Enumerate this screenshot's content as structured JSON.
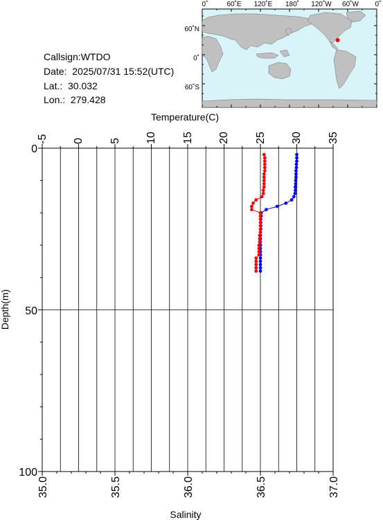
{
  "station": {
    "callsign": "Callsign:WTDO",
    "date": "Date:  2025/07/31 15:52(UTC)",
    "lat": "Lat.:  30.032",
    "lon": "Lon.:  279.428"
  },
  "map": {
    "top_lon_labels": [
      "0˚",
      "60˚E",
      "120˚E",
      "180˚",
      "120˚W",
      "60˚W",
      "0˚"
    ],
    "left_lat_labels": [
      "60˚N",
      "0˚",
      "60˚S"
    ],
    "ocean_color": "#d8f4f8",
    "land_color": "#c0c0c0",
    "marker_color": "#ff0000",
    "marker": {
      "lon": 279.428,
      "lat": 30.032
    }
  },
  "chart_data": {
    "type": "line",
    "top_axis": {
      "label": "Temperature(C)",
      "range": [
        -5,
        35
      ],
      "ticks": [
        "-5",
        "0",
        "5",
        "10",
        "15",
        "20",
        "25",
        "30",
        "35"
      ]
    },
    "bottom_axis": {
      "label": "Salinity",
      "range": [
        35.0,
        37.0
      ],
      "ticks": [
        "35.0",
        "35.5",
        "36.0",
        "36.5",
        "37.0"
      ]
    },
    "left_axis": {
      "label": "Depth(m)",
      "range": [
        0,
        100
      ],
      "inverted": true,
      "ticks": [
        "0",
        "50",
        "100"
      ]
    },
    "grid": true,
    "series": [
      {
        "color": "#0000ff",
        "axis": "temperature",
        "points": [
          {
            "depth": 2,
            "value": 30.0
          },
          {
            "depth": 3,
            "value": 30.0
          },
          {
            "depth": 4,
            "value": 30.0
          },
          {
            "depth": 5,
            "value": 29.95
          },
          {
            "depth": 6,
            "value": 29.95
          },
          {
            "depth": 7,
            "value": 29.9
          },
          {
            "depth": 8,
            "value": 29.9
          },
          {
            "depth": 9,
            "value": 29.9
          },
          {
            "depth": 10,
            "value": 29.85
          },
          {
            "depth": 11,
            "value": 29.85
          },
          {
            "depth": 12,
            "value": 29.8
          },
          {
            "depth": 13,
            "value": 29.8
          },
          {
            "depth": 14,
            "value": 29.75
          },
          {
            "depth": 15,
            "value": 29.6
          },
          {
            "depth": 16,
            "value": 29.3
          },
          {
            "depth": 17,
            "value": 28.5
          },
          {
            "depth": 18,
            "value": 27.3
          },
          {
            "depth": 19,
            "value": 25.8
          },
          {
            "depth": 20,
            "value": 25.1
          },
          {
            "depth": 21,
            "value": 25.1
          },
          {
            "depth": 22,
            "value": 25.05
          },
          {
            "depth": 23,
            "value": 25.05
          },
          {
            "depth": 24,
            "value": 25.05
          },
          {
            "depth": 25,
            "value": 25.05
          },
          {
            "depth": 26,
            "value": 25.0
          },
          {
            "depth": 27,
            "value": 25.0
          },
          {
            "depth": 28,
            "value": 25.0
          },
          {
            "depth": 29,
            "value": 25.0
          },
          {
            "depth": 30,
            "value": 25.0
          },
          {
            "depth": 31,
            "value": 25.0
          },
          {
            "depth": 32,
            "value": 25.0
          },
          {
            "depth": 33,
            "value": 25.0
          },
          {
            "depth": 34,
            "value": 25.0
          },
          {
            "depth": 35,
            "value": 25.0
          },
          {
            "depth": 36,
            "value": 25.0
          },
          {
            "depth": 37,
            "value": 25.0
          },
          {
            "depth": 38,
            "value": 25.0
          }
        ]
      },
      {
        "color": "#ff0000",
        "axis": "salinity",
        "points": [
          {
            "depth": 2,
            "value": 36.525
          },
          {
            "depth": 3,
            "value": 36.53
          },
          {
            "depth": 4,
            "value": 36.53
          },
          {
            "depth": 5,
            "value": 36.53
          },
          {
            "depth": 6,
            "value": 36.53
          },
          {
            "depth": 7,
            "value": 36.53
          },
          {
            "depth": 8,
            "value": 36.525
          },
          {
            "depth": 9,
            "value": 36.525
          },
          {
            "depth": 10,
            "value": 36.525
          },
          {
            "depth": 11,
            "value": 36.525
          },
          {
            "depth": 12,
            "value": 36.525
          },
          {
            "depth": 13,
            "value": 36.52
          },
          {
            "depth": 14,
            "value": 36.52
          },
          {
            "depth": 15,
            "value": 36.51
          },
          {
            "depth": 16,
            "value": 36.47
          },
          {
            "depth": 17,
            "value": 36.45
          },
          {
            "depth": 18,
            "value": 36.44
          },
          {
            "depth": 19,
            "value": 36.44
          },
          {
            "depth": 20,
            "value": 36.5
          },
          {
            "depth": 21,
            "value": 36.5
          },
          {
            "depth": 22,
            "value": 36.5
          },
          {
            "depth": 23,
            "value": 36.5
          },
          {
            "depth": 24,
            "value": 36.5
          },
          {
            "depth": 25,
            "value": 36.5
          },
          {
            "depth": 26,
            "value": 36.5
          },
          {
            "depth": 27,
            "value": 36.495
          },
          {
            "depth": 28,
            "value": 36.495
          },
          {
            "depth": 29,
            "value": 36.495
          },
          {
            "depth": 30,
            "value": 36.49
          },
          {
            "depth": 31,
            "value": 36.49
          },
          {
            "depth": 32,
            "value": 36.49
          },
          {
            "depth": 33,
            "value": 36.49
          },
          {
            "depth": 34,
            "value": 36.47
          },
          {
            "depth": 35,
            "value": 36.47
          },
          {
            "depth": 36,
            "value": 36.47
          },
          {
            "depth": 37,
            "value": 36.47
          },
          {
            "depth": 38,
            "value": 36.47
          }
        ]
      }
    ]
  }
}
